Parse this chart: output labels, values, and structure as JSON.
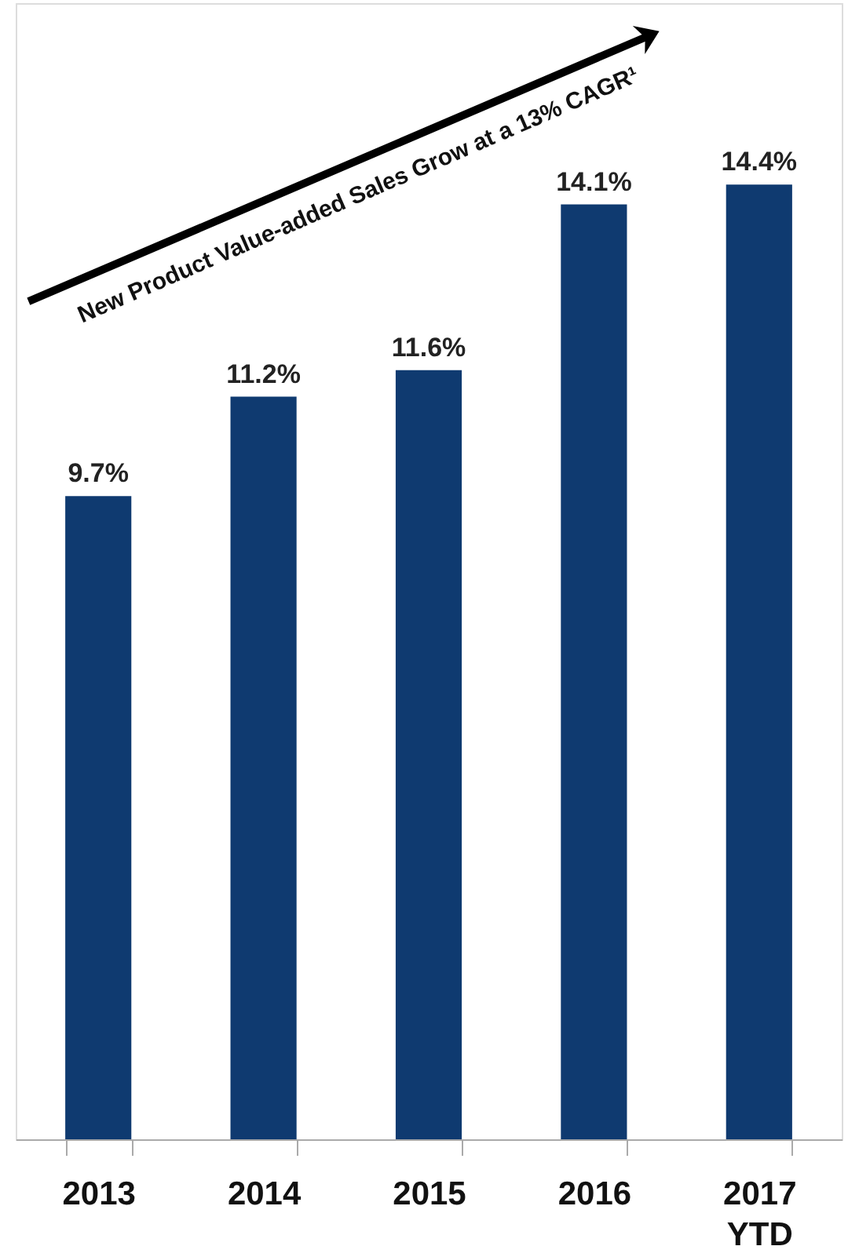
{
  "chart_data": {
    "type": "bar",
    "categories": [
      "2013",
      "2014",
      "2015",
      "2016",
      "2017\nYTD"
    ],
    "values": [
      9.7,
      11.2,
      11.6,
      14.1,
      14.4
    ],
    "value_labels": [
      "9.7%",
      "11.2%",
      "11.6%",
      "14.1%",
      "14.4%"
    ],
    "color": "#0f3a70",
    "grid": false,
    "annotations": [
      "New Product Value-added Sales Grow at a 13% CAGR¹"
    ]
  }
}
